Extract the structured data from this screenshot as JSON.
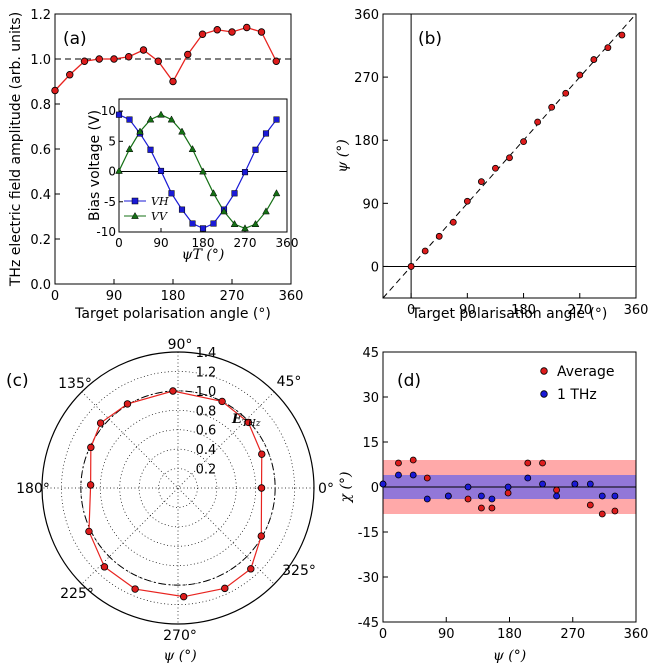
{
  "colors": {
    "red": "#e8231f",
    "red_fill": "#dd1c1c",
    "blue": "#1a1ad6",
    "green": "#157015",
    "band_red": "#ff9a9a",
    "band_blue": "#7f6fe0"
  },
  "chart_data": [
    {
      "id": "a",
      "type": "line",
      "panel_label": "(a)",
      "xlabel": "Target polarisation angle (°)",
      "ylabel": "THz electric field amplitude (arb. units)",
      "xlim": [
        0,
        360
      ],
      "ylim": [
        0,
        1.2
      ],
      "xticks": [
        "0",
        "90",
        "180",
        "270",
        "360"
      ],
      "yticks": [
        "0.0",
        "0.2",
        "0.4",
        "0.6",
        "0.8",
        "1.0",
        "1.2"
      ],
      "reference_line": 1.0,
      "x": [
        0,
        22.5,
        45,
        67.5,
        90,
        112.5,
        135,
        157.5,
        180,
        202.5,
        225,
        247.5,
        270,
        292.5,
        315,
        337.5
      ],
      "values": [
        0.86,
        0.93,
        0.99,
        1.0,
        1.0,
        1.01,
        1.04,
        0.99,
        0.9,
        1.02,
        1.11,
        1.13,
        1.12,
        1.14,
        1.12,
        0.99
      ]
    },
    {
      "id": "a_inset",
      "type": "line",
      "xlabel": "ψT (°)",
      "ylabel": "Bias voltage (V)",
      "xlim": [
        0,
        360
      ],
      "ylim": [
        -10,
        12
      ],
      "xticks": [
        "0",
        "90",
        "180",
        "270",
        "360"
      ],
      "yticks": [
        "-10",
        "-5",
        "0",
        "5",
        "10"
      ],
      "x": [
        0,
        22.5,
        45,
        67.5,
        90,
        112.5,
        135,
        157.5,
        180,
        202.5,
        225,
        247.5,
        270,
        292.5,
        315,
        337.5
      ],
      "series": [
        {
          "name": "VH",
          "marker": "square",
          "values": [
            9.4,
            8.6,
            6.3,
            3.6,
            0.1,
            -3.6,
            -6.3,
            -8.6,
            -9.4,
            -8.6,
            -6.3,
            -3.6,
            -0.1,
            3.6,
            6.3,
            8.6
          ]
        },
        {
          "name": "VV",
          "marker": "triangle",
          "values": [
            0.1,
            3.7,
            6.6,
            8.6,
            9.4,
            8.6,
            6.6,
            3.7,
            0.0,
            -3.6,
            -6.6,
            -8.7,
            -9.4,
            -8.7,
            -6.6,
            -3.6
          ]
        }
      ]
    },
    {
      "id": "b",
      "type": "scatter",
      "panel_label": "(b)",
      "xlabel": "Target polarisation angle (°)",
      "ylabel": "ψ (°)",
      "xlim": [
        -45,
        360
      ],
      "ylim": [
        -45,
        360
      ],
      "xticks": [
        "0",
        "90",
        "180",
        "270",
        "360"
      ],
      "yticks": [
        "0",
        "90",
        "180",
        "270",
        "360"
      ],
      "x": [
        0,
        22.5,
        45,
        67.5,
        90,
        112.5,
        135,
        157.5,
        180,
        202.5,
        225,
        247.5,
        270,
        292.5,
        315,
        337.5
      ],
      "values": [
        0,
        22,
        43,
        63,
        93,
        121,
        140,
        155,
        178,
        206,
        227,
        247,
        273,
        295,
        312,
        330
      ]
    },
    {
      "id": "c",
      "type": "polar",
      "panel_label": "(c)",
      "xlabel": "ψ (°)",
      "radial_label": "ETHz",
      "rlim": [
        0,
        1.4
      ],
      "rticks": [
        "0.2",
        "0.4",
        "0.6",
        "0.8",
        "1.0",
        "1.2",
        "1.4"
      ],
      "angle_labels": [
        {
          "deg": 0,
          "text": "0°"
        },
        {
          "deg": 45,
          "text": "45°"
        },
        {
          "deg": 90,
          "text": "90°"
        },
        {
          "deg": 135,
          "text": "135°"
        },
        {
          "deg": 180,
          "text": "180°"
        },
        {
          "deg": 225,
          "text": "225°"
        },
        {
          "deg": 270,
          "text": "270°"
        },
        {
          "deg": 325,
          "text": "325°"
        }
      ],
      "reference_radius": 1.0,
      "angles": [
        0,
        22,
        43,
        63,
        93,
        121,
        140,
        155,
        178,
        206,
        227,
        247,
        273,
        295,
        312,
        330
      ],
      "values": [
        0.86,
        0.93,
        0.99,
        1.0,
        1.0,
        1.01,
        1.04,
        0.99,
        0.9,
        1.02,
        1.11,
        1.13,
        1.12,
        1.14,
        1.12,
        0.99
      ]
    },
    {
      "id": "d",
      "type": "scatter",
      "panel_label": "(d)",
      "xlabel": "ψ (°)",
      "ylabel": "χ (°)",
      "xlim": [
        0,
        360
      ],
      "ylim": [
        -45,
        45
      ],
      "xticks": [
        "0",
        "90",
        "180",
        "270",
        "360"
      ],
      "yticks": [
        "-45",
        "-30",
        "-15",
        "0",
        "15",
        "30",
        "45"
      ],
      "bands": [
        {
          "name": "average-band",
          "range": [
            -9,
            9
          ]
        },
        {
          "name": "1thz-band",
          "range": [
            -4,
            4
          ]
        }
      ],
      "series": [
        {
          "name": "Average",
          "x": [
            0,
            22,
            43,
            63,
            93,
            121,
            140,
            155,
            178,
            206,
            227,
            247,
            273,
            295,
            312,
            330
          ],
          "values": [
            1,
            8,
            9,
            3,
            -3,
            -4,
            -7,
            -7,
            -2,
            8,
            8,
            -1,
            1,
            -6,
            -9,
            -8
          ]
        },
        {
          "name": "1 THz",
          "x": [
            0,
            22,
            43,
            63,
            93,
            121,
            140,
            155,
            178,
            206,
            227,
            247,
            273,
            295,
            312,
            330
          ],
          "values": [
            1,
            4,
            4,
            -4,
            -3,
            0,
            -3,
            -4,
            0,
            3,
            1,
            -3,
            1,
            1,
            -3,
            -3
          ]
        }
      ]
    }
  ]
}
